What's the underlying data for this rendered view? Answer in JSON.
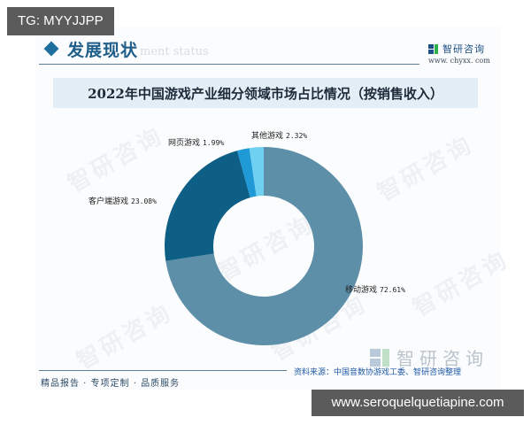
{
  "overlay": {
    "tg_badge": "TG: MYYJJPP",
    "url_badge": "www.seroquelquetiapine.com"
  },
  "header": {
    "section_title": "发展现状",
    "section_subtitle": "ment status",
    "brand_name": "智研咨询",
    "brand_url": "www. chyxx. com"
  },
  "footer": {
    "slogan": "精品报告 · 专项定制 · 品质服务",
    "source": "资料来源：中国音数协游戏工委、智研咨询整理",
    "brand_name": "智研咨询"
  },
  "watermark": "智研咨询",
  "colors": {
    "mobile": "#5e8fa8",
    "client": "#0d5f86",
    "web": "#1f9ad6",
    "other": "#6fd0f2",
    "title_band": "#e4eef6",
    "accent": "#1f6ea0"
  },
  "chart_data": {
    "type": "pie",
    "variant": "donut",
    "title": "2022年中国游戏产业细分领域市场占比情况（按销售收入）",
    "categories": [
      "移动游戏",
      "客户端游戏",
      "网页游戏",
      "其他游戏"
    ],
    "values": [
      72.61,
      23.08,
      1.99,
      2.32
    ],
    "unit": "%",
    "start_angle": "12 o'clock",
    "direction": "clockwise",
    "labels": [
      {
        "name": "移动游戏",
        "value": "72.61%"
      },
      {
        "name": "客户端游戏",
        "value": "23.08%"
      },
      {
        "name": "网页游戏",
        "value": "1.99%"
      },
      {
        "name": "其他游戏",
        "value": "2.32%"
      }
    ],
    "legend": "none (inline labels)"
  }
}
